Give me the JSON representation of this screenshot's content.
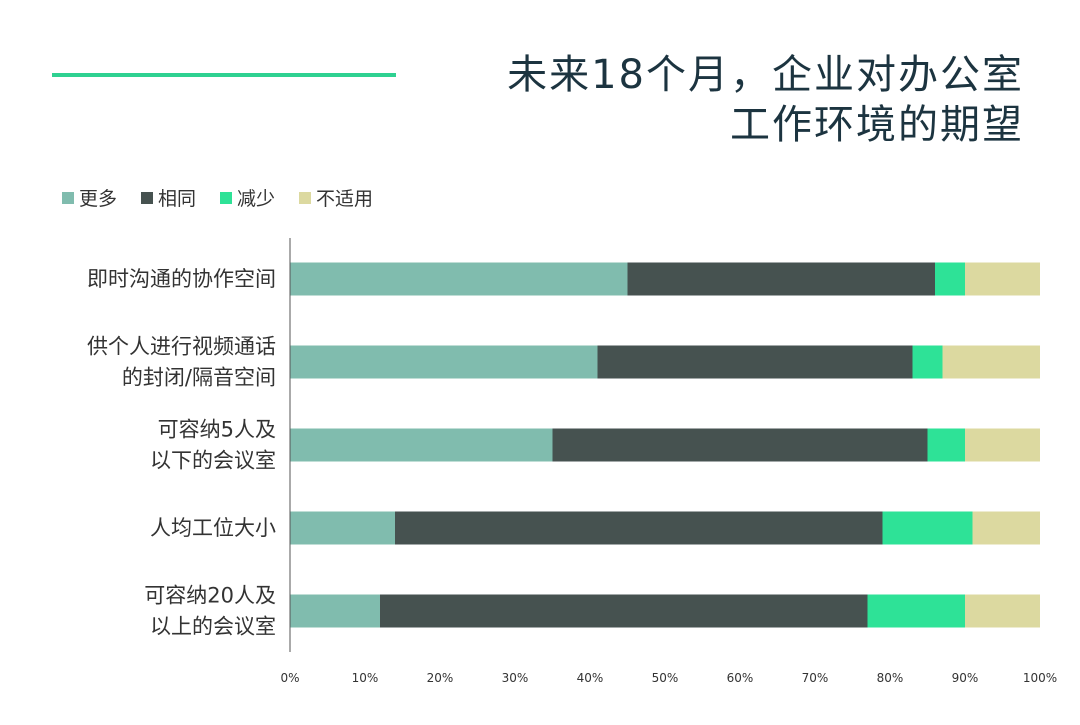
{
  "title": {
    "line1": "未来18个月，企业对办公室",
    "line2": "工作环境的期望"
  },
  "colors": {
    "accent": "#2ed191",
    "title": "#1c3440"
  },
  "chart_data": {
    "type": "bar",
    "orientation": "horizontal",
    "stacked": true,
    "categories": [
      [
        "即时沟通的协作空间"
      ],
      [
        "供个人进行视频通话",
        "的封闭/隔音空间"
      ],
      [
        "可容纳5人及",
        "以下的会议室"
      ],
      [
        "人均工位大小"
      ],
      [
        "可容纳20人及",
        "以上的会议室"
      ]
    ],
    "series": [
      {
        "name": "更多",
        "color": "#80bcae",
        "values": [
          45,
          41,
          35,
          14,
          12
        ]
      },
      {
        "name": "相同",
        "color": "#465250",
        "values": [
          41,
          42,
          50,
          65,
          65
        ]
      },
      {
        "name": "减少",
        "color": "#2ee297",
        "values": [
          4,
          4,
          5,
          12,
          13
        ]
      },
      {
        "name": "不适用",
        "color": "#dcd9a0",
        "values": [
          10,
          13,
          10,
          9,
          10
        ]
      }
    ],
    "xlim": [
      0,
      100
    ],
    "xticks": [
      "0%",
      "10%",
      "20%",
      "30%",
      "40%",
      "50%",
      "60%",
      "70%",
      "80%",
      "90%",
      "100%"
    ],
    "legend_position": "top-left",
    "grid": false
  }
}
